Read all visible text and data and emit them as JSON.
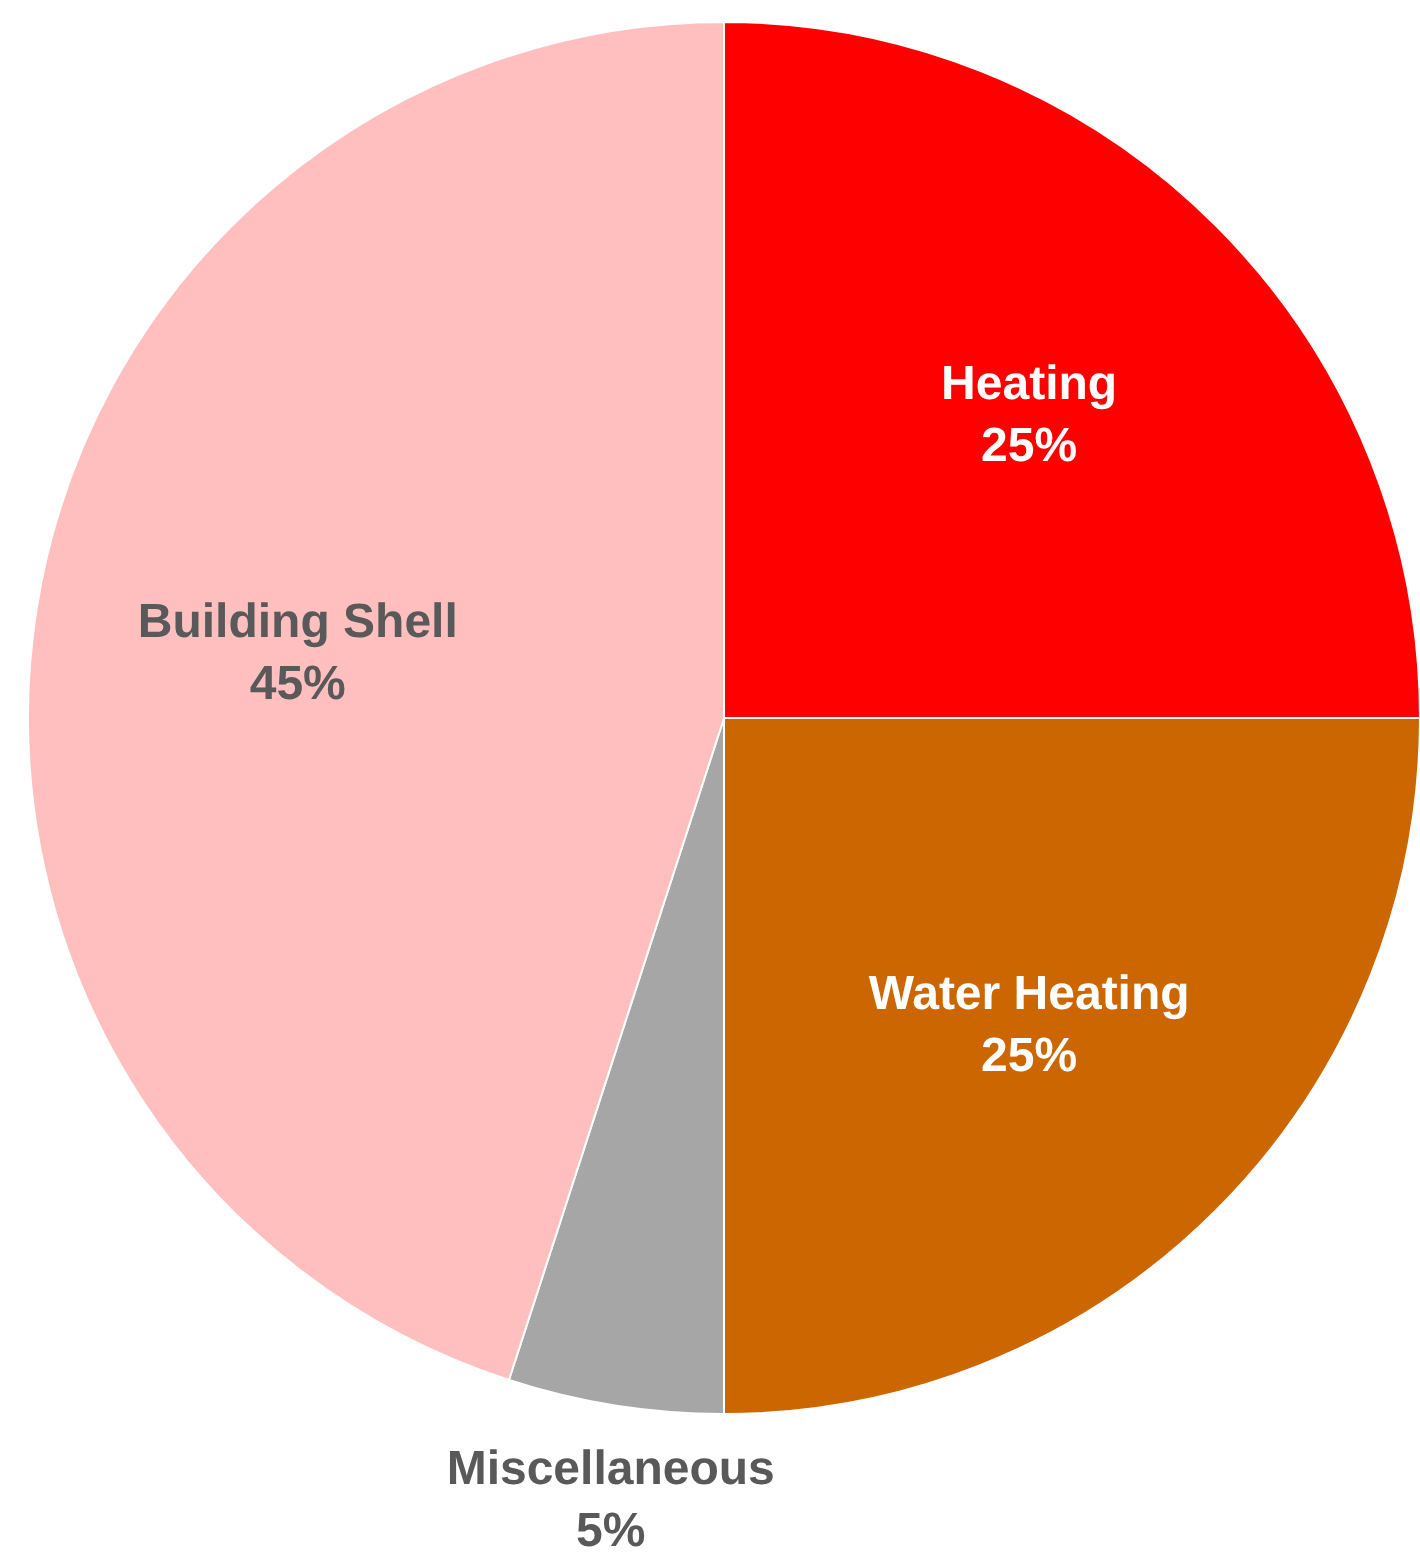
{
  "chart_data": {
    "type": "pie",
    "categories": [
      "Heating",
      "Water Heating",
      "Miscellaneous",
      "Building Shell"
    ],
    "values": [
      25,
      25,
      5,
      45
    ],
    "colors": [
      "#ff0000",
      "#cc6600",
      "#a6a6a6",
      "#ffbfbf"
    ],
    "value_labels": [
      "25%",
      "25%",
      "5%",
      "45%"
    ]
  }
}
